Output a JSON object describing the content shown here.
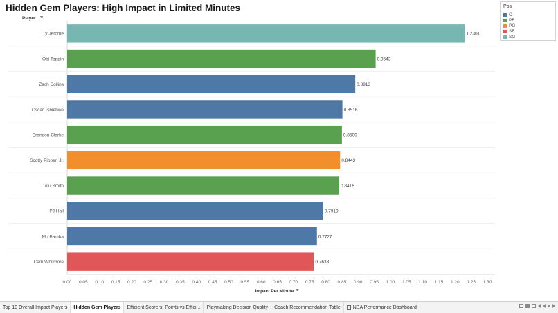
{
  "title": "Hidden Gem Players: High Impact in Limited Minutes",
  "legend": {
    "title": "Pos",
    "items": [
      {
        "label": "C",
        "color": "#4e79a7"
      },
      {
        "label": "PF",
        "color": "#59a14f"
      },
      {
        "label": "PG",
        "color": "#f28e2b"
      },
      {
        "label": "SF",
        "color": "#e15759"
      },
      {
        "label": "SG",
        "color": "#76b7b2"
      }
    ]
  },
  "tabs": [
    {
      "label": "Top 10 Overall Impact Players",
      "active": false
    },
    {
      "label": "Hidden Gem Players",
      "active": true
    },
    {
      "label": "Efficient Scorers: Points vs Effici...",
      "active": false
    },
    {
      "label": "Playmaking Decision Quality",
      "active": false
    },
    {
      "label": "Coach Recommendation Table",
      "active": false
    },
    {
      "label": "NBA Performance Dashboard",
      "active": false,
      "icon": "dashboard-icon"
    }
  ],
  "chart_data": {
    "type": "bar",
    "orientation": "horizontal",
    "title": "Hidden Gem Players: High Impact in Limited Minutes",
    "ylabel": "Player",
    "xlabel": "Impact Per Minute",
    "xlim": [
      0,
      1.3
    ],
    "xticks": [
      "0.00",
      "0.05",
      "0.10",
      "0.15",
      "0.20",
      "0.25",
      "0.30",
      "0.35",
      "0.40",
      "0.45",
      "0.50",
      "0.55",
      "0.60",
      "0.65",
      "0.70",
      "0.75",
      "0.80",
      "0.85",
      "0.90",
      "0.95",
      "1.00",
      "1.05",
      "1.10",
      "1.15",
      "1.20",
      "1.25",
      "1.30"
    ],
    "categories": [
      "Ty Jerome",
      "Obi Toppin",
      "Zach Collins",
      "Oscar Tshiebwe",
      "Brandon Clarke",
      "Scotty Pippen Jr.",
      "Tolu Smith",
      "PJ Hall",
      "Mo Bamba",
      "Cam Whitmore"
    ],
    "values": [
      1.2301,
      0.9543,
      0.8913,
      0.8516,
      0.85,
      0.8443,
      0.8416,
      0.7919,
      0.7727,
      0.7633
    ],
    "value_labels": [
      "1.2301",
      "0.9543",
      "0.8913",
      "0.8516",
      "0.8500",
      "0.8443",
      "0.8416",
      "0.7919",
      "0.7727",
      "0.7633"
    ],
    "positions": [
      "SG",
      "PF",
      "C",
      "C",
      "PF",
      "PG",
      "PF",
      "C",
      "C",
      "SF"
    ],
    "grid": "horizontal-bands",
    "legend_placement": "top-right"
  }
}
